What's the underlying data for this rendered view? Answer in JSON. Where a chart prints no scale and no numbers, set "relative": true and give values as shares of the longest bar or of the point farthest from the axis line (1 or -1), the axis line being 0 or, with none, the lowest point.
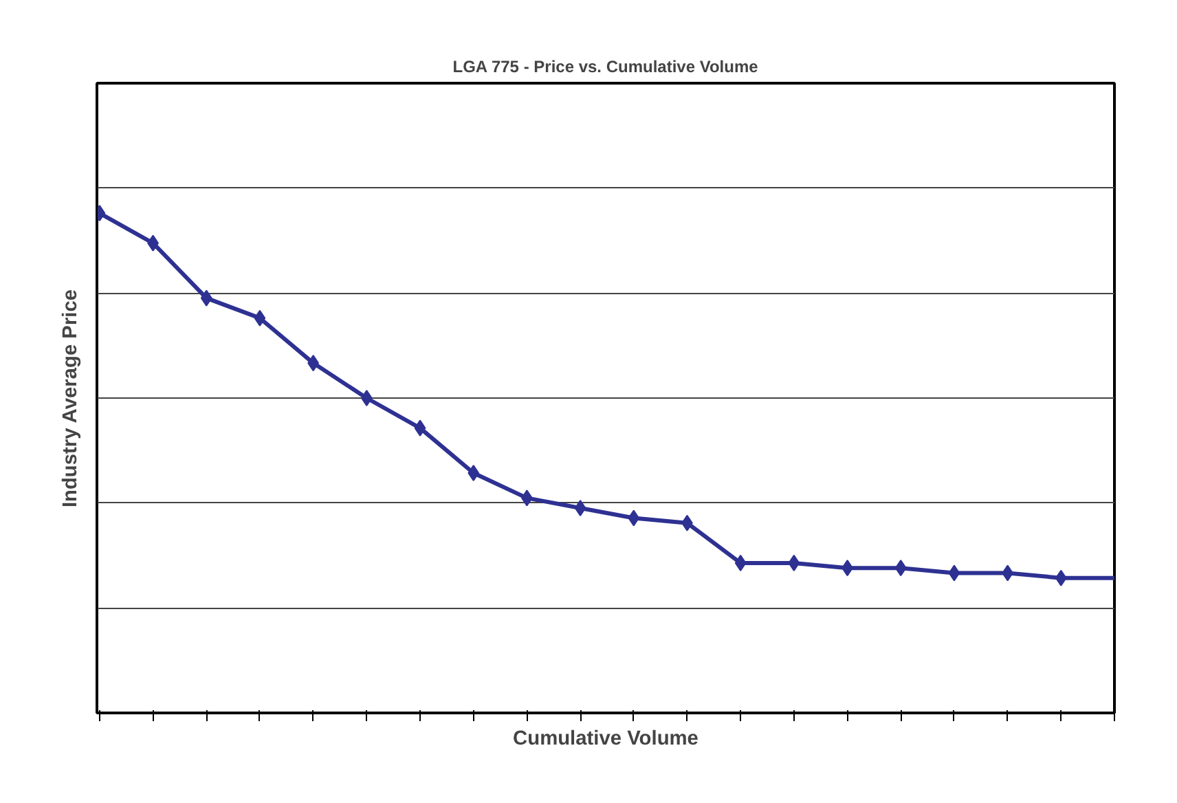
{
  "chart_data": {
    "type": "line",
    "title": "LGA 775 - Price vs. Cumulative Volume",
    "xlabel": "Cumulative Volume",
    "ylabel": "Industry Average Price",
    "relative": true,
    "grid": "y",
    "categories": [
      null,
      null,
      null,
      null,
      null,
      null,
      null,
      null,
      null,
      null,
      null,
      null,
      null,
      null,
      null,
      null,
      null,
      null,
      null,
      null
    ],
    "series": [
      {
        "color": "#2e3192",
        "marker": "diamond",
        "values": [
          1,
          0.94,
          0.83,
          0.79,
          0.7,
          0.63,
          0.57,
          0.48,
          0.43,
          0.41,
          0.39,
          0.38,
          0.3,
          0.3,
          0.29,
          0.29,
          0.28,
          0.28,
          0.27,
          null
        ]
      },
      {
        "color": "#2e3192",
        "values": [
          null,
          null,
          null,
          null,
          null,
          null,
          null,
          null,
          null,
          null,
          null,
          null,
          null,
          null,
          null,
          null,
          null,
          null,
          0.27,
          0.27
        ]
      }
    ]
  }
}
